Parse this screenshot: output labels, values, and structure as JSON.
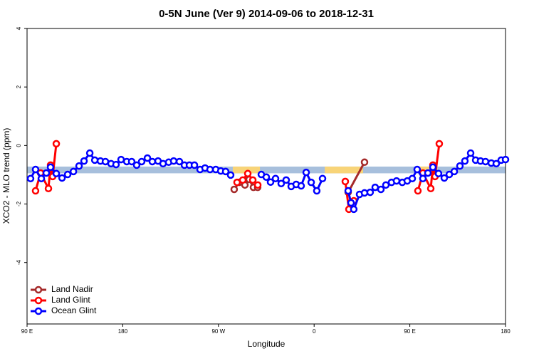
{
  "chart_data": {
    "type": "line",
    "title": "0-5N June (Ver 9)   2014-09-06 to 2018-12-31",
    "x_label": "Longitude",
    "y_label": "XCO2 - MLO trend (ppm)",
    "xlim": [
      90,
      540
    ],
    "xticks": [
      {
        "value": 90,
        "label": "90 E"
      },
      {
        "value": 180,
        "label": "180"
      },
      {
        "value": 270,
        "label": "90 W"
      },
      {
        "value": 360,
        "label": "0"
      },
      {
        "value": 450,
        "label": "90 E"
      },
      {
        "value": 540,
        "label": "180"
      }
    ],
    "ylim": [
      -6.1,
      4
    ],
    "yticks": [
      4,
      2,
      0,
      -2,
      -4
    ],
    "legend": "lower left",
    "band": {
      "ylim": [
        -0.95,
        -0.72
      ],
      "color": "#a7bfdc"
    },
    "land_ranges": {
      "color": "#f8d478",
      "ranges": [
        [
          283.5,
          309
        ],
        [
          370,
          406
        ],
        [
          459.6,
          476
        ]
      ]
    },
    "series": [
      {
        "name": "Land Nadir",
        "color": "#a52a2a",
        "x": [
          284.8,
          289.5,
          294.9,
          298.9,
          302.9,
          306.9,
          null,
          392.0,
          407.4
        ],
        "values": [
          -1.5,
          -1.26,
          -1.35,
          -1.16,
          -1.43,
          -1.43,
          null,
          -1.6,
          -0.57
        ]
      },
      {
        "name": "Land Glint",
        "color": "#ff0000",
        "x": [
          98.0,
          102.7,
          110.1,
          112.1,
          114.1,
          117.5,
          null,
          287.5,
          292.9,
          297.6,
          302.3,
          307.0,
          null,
          389.3,
          392.7,
          397.3,
          null,
          457.6,
          462.3,
          469.7,
          471.7,
          473.7,
          477.7
        ],
        "values": [
          -1.55,
          -0.94,
          -1.47,
          -0.67,
          -1.06,
          0.06,
          null,
          -1.26,
          -1.18,
          -0.96,
          -1.18,
          -1.35,
          null,
          -1.23,
          -2.18,
          -1.89,
          null,
          -1.55,
          -0.94,
          -1.47,
          -0.67,
          -1.06,
          0.06
        ]
      },
      {
        "name": "Ocean Glint",
        "color": "#0000ff",
        "x": [
          93.3,
          98.0,
          103.4,
          108.1,
          112.1,
          117.5,
          122.9,
          128.2,
          133.6,
          138.9,
          143.6,
          149.0,
          153.7,
          159.0,
          163.7,
          169.0,
          173.7,
          178.4,
          183.8,
          188.4,
          193.1,
          197.8,
          203.2,
          207.8,
          213.2,
          217.9,
          223.2,
          227.9,
          233.3,
          238.0,
          242.7,
          247.4,
          252.7,
          257.4,
          262.1,
          267.5,
          272.2,
          276.8,
          281.5,
          null,
          310.3,
          315.0,
          319.0,
          323.7,
          329.0,
          333.7,
          338.4,
          343.1,
          347.8,
          352.5,
          357.2,
          362.5,
          367.9,
          null,
          392.0,
          394.7,
          397.3,
          402.7,
          407.4,
          412.7,
          417.4,
          422.8,
          427.5,
          432.8,
          437.5,
          442.9,
          447.6,
          452.3,
          456.9,
          462.3,
          467.0,
          471.7,
          477.0,
          482.4,
          487.1,
          491.8,
          497.1,
          501.8,
          507.2,
          511.9,
          516.5,
          521.2,
          526.6,
          531.3,
          535.9,
          540
        ],
        "values": [
          -1.13,
          -0.82,
          -1.13,
          -0.94,
          -0.74,
          -0.96,
          -1.11,
          -0.99,
          -0.89,
          -0.7,
          -0.53,
          -0.26,
          -0.5,
          -0.53,
          -0.55,
          -0.62,
          -0.65,
          -0.48,
          -0.55,
          -0.55,
          -0.67,
          -0.55,
          -0.43,
          -0.55,
          -0.53,
          -0.62,
          -0.57,
          -0.53,
          -0.55,
          -0.67,
          -0.67,
          -0.67,
          -0.82,
          -0.77,
          -0.82,
          -0.82,
          -0.87,
          -0.89,
          -1.01,
          null,
          -0.99,
          -1.08,
          -1.25,
          -1.13,
          -1.3,
          -1.18,
          -1.4,
          -1.33,
          -1.38,
          -0.92,
          -1.26,
          -1.55,
          -1.13,
          null,
          -1.55,
          -1.96,
          -2.18,
          -1.67,
          -1.62,
          -1.6,
          -1.43,
          -1.5,
          -1.35,
          -1.26,
          -1.21,
          -1.26,
          -1.21,
          -1.13,
          -0.82,
          -1.13,
          -0.94,
          -0.74,
          -0.96,
          -1.11,
          -0.99,
          -0.89,
          -0.7,
          -0.53,
          -0.26,
          -0.5,
          -0.53,
          -0.55,
          -0.6,
          -0.62,
          -0.5,
          -0.48
        ]
      }
    ]
  }
}
